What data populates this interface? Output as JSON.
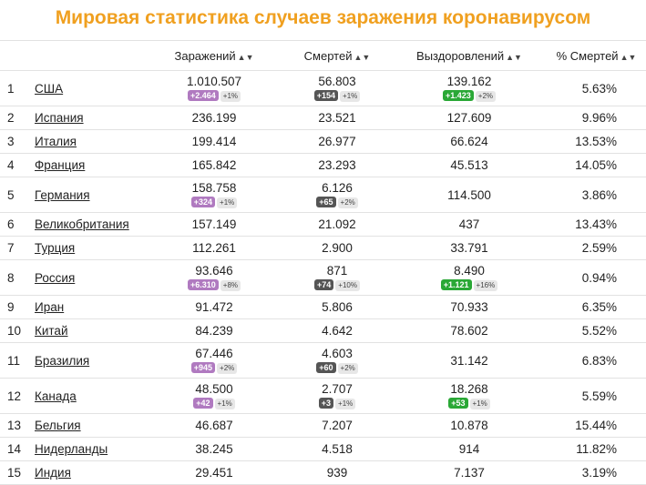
{
  "title": "Мировая статистика случаев заражения коронавирусом",
  "headers": {
    "infections": "Заражений",
    "deaths": "Смертей",
    "recovered": "Выздоровлений",
    "pct": "% Смертей",
    "sort_icon": "sort-icon"
  },
  "rows": [
    {
      "rank": "1",
      "country": "США",
      "infections": "1.010.507",
      "inf_delta": "+2.464",
      "inf_pct": "+1%",
      "deaths": "56.803",
      "death_delta": "+154",
      "death_pct": "+1%",
      "recovered": "139.162",
      "rec_delta": "+1.423",
      "rec_pct": "+2%",
      "pct": "5.63%"
    },
    {
      "rank": "2",
      "country": "Испания",
      "infections": "236.199",
      "deaths": "23.521",
      "recovered": "127.609",
      "pct": "9.96%"
    },
    {
      "rank": "3",
      "country": "Италия",
      "infections": "199.414",
      "deaths": "26.977",
      "recovered": "66.624",
      "pct": "13.53%"
    },
    {
      "rank": "4",
      "country": "Франция",
      "infections": "165.842",
      "deaths": "23.293",
      "recovered": "45.513",
      "pct": "14.05%"
    },
    {
      "rank": "5",
      "country": "Германия",
      "infections": "158.758",
      "inf_delta": "+324",
      "inf_pct": "+1%",
      "deaths": "6.126",
      "death_delta": "+65",
      "death_pct": "+2%",
      "recovered": "114.500",
      "pct": "3.86%"
    },
    {
      "rank": "6",
      "country": "Великобритания",
      "infections": "157.149",
      "deaths": "21.092",
      "recovered": "437",
      "pct": "13.43%"
    },
    {
      "rank": "7",
      "country": "Турция",
      "infections": "112.261",
      "deaths": "2.900",
      "recovered": "33.791",
      "pct": "2.59%"
    },
    {
      "rank": "8",
      "country": "Россия",
      "infections": "93.646",
      "inf_delta": "+6.310",
      "inf_pct": "+8%",
      "deaths": "871",
      "death_delta": "+74",
      "death_pct": "+10%",
      "recovered": "8.490",
      "rec_delta": "+1.121",
      "rec_pct": "+16%",
      "pct": "0.94%"
    },
    {
      "rank": "9",
      "country": "Иран",
      "infections": "91.472",
      "deaths": "5.806",
      "recovered": "70.933",
      "pct": "6.35%"
    },
    {
      "rank": "10",
      "country": "Китай",
      "infections": "84.239",
      "deaths": "4.642",
      "recovered": "78.602",
      "pct": "5.52%"
    },
    {
      "rank": "11",
      "country": "Бразилия",
      "infections": "67.446",
      "inf_delta": "+945",
      "inf_pct": "+2%",
      "deaths": "4.603",
      "death_delta": "+60",
      "death_pct": "+2%",
      "recovered": "31.142",
      "pct": "6.83%"
    },
    {
      "rank": "12",
      "country": "Канада",
      "infections": "48.500",
      "inf_delta": "+42",
      "inf_pct": "+1%",
      "deaths": "2.707",
      "death_delta": "+3",
      "death_pct": "+1%",
      "recovered": "18.268",
      "rec_delta": "+53",
      "rec_pct": "+1%",
      "pct": "5.59%"
    },
    {
      "rank": "13",
      "country": "Бельгия",
      "infections": "46.687",
      "deaths": "7.207",
      "recovered": "10.878",
      "pct": "15.44%"
    },
    {
      "rank": "14",
      "country": "Нидерланды",
      "infections": "38.245",
      "deaths": "4.518",
      "recovered": "914",
      "pct": "11.82%"
    },
    {
      "rank": "15",
      "country": "Индия",
      "infections": "29.451",
      "deaths": "939",
      "recovered": "7.137",
      "pct": "3.19%"
    }
  ],
  "colors": {
    "title": "#f0a020",
    "infections_badge": "#b07ac0",
    "deaths_badge": "#555555",
    "recovered_badge": "#2aa836"
  }
}
